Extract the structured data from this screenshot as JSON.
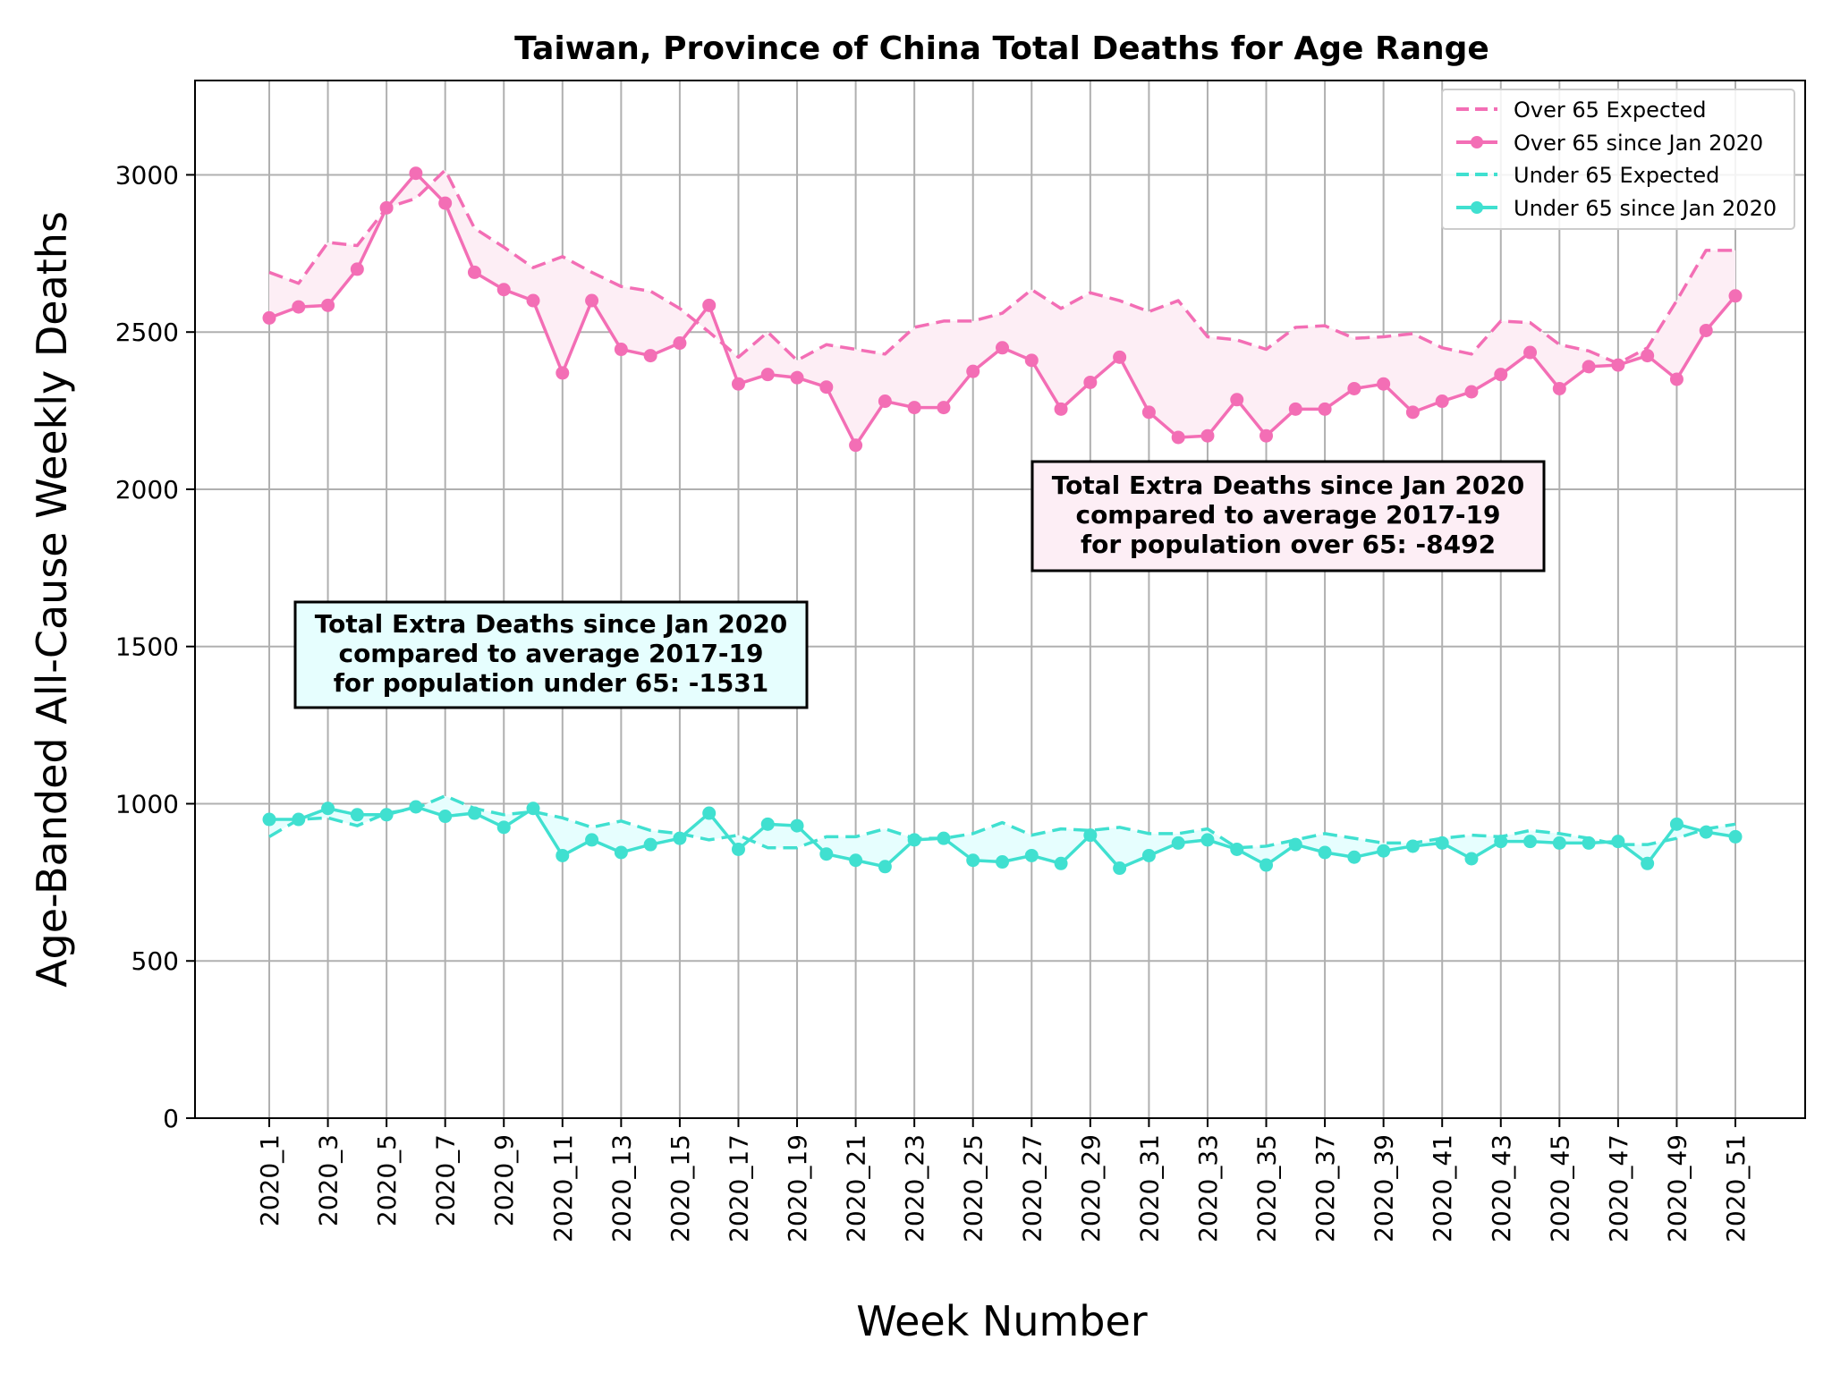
{
  "chart_data": {
    "type": "line",
    "title": "Taiwan, Province of China Total Deaths for Age Range",
    "xlabel": "Week Number",
    "ylabel": "Age-Banded All-Cause Weekly Deaths",
    "ylim": [
      0,
      3300
    ],
    "yticks": [
      0,
      500,
      1000,
      1500,
      2000,
      2500,
      3000
    ],
    "grid": true,
    "legend_position": "top-right",
    "x": [
      "2020_1",
      "2020_2",
      "2020_3",
      "2020_4",
      "2020_5",
      "2020_6",
      "2020_7",
      "2020_8",
      "2020_9",
      "2020_10",
      "2020_11",
      "2020_12",
      "2020_13",
      "2020_14",
      "2020_15",
      "2020_16",
      "2020_17",
      "2020_18",
      "2020_19",
      "2020_20",
      "2020_21",
      "2020_22",
      "2020_23",
      "2020_24",
      "2020_25",
      "2020_26",
      "2020_27",
      "2020_28",
      "2020_29",
      "2020_30",
      "2020_31",
      "2020_32",
      "2020_33",
      "2020_34",
      "2020_35",
      "2020_36",
      "2020_37",
      "2020_38",
      "2020_39",
      "2020_40",
      "2020_41",
      "2020_42",
      "2020_43",
      "2020_44",
      "2020_45",
      "2020_46",
      "2020_47",
      "2020_48",
      "2020_49",
      "2020_50",
      "2020_51"
    ],
    "xtick_labels": [
      "2020_1",
      "2020_3",
      "2020_5",
      "2020_7",
      "2020_9",
      "2020_11",
      "2020_13",
      "2020_15",
      "2020_17",
      "2020_19",
      "2020_21",
      "2020_23",
      "2020_25",
      "2020_27",
      "2020_29",
      "2020_31",
      "2020_33",
      "2020_35",
      "2020_37",
      "2020_39",
      "2020_41",
      "2020_43",
      "2020_45",
      "2020_47",
      "2020_49",
      "2020_51"
    ],
    "series": [
      {
        "name": "Over 65 Expected",
        "style": "dashed",
        "color": "#f36eb5",
        "values": [
          2690,
          2655,
          2785,
          2775,
          2895,
          2925,
          3015,
          2830,
          2770,
          2705,
          2740,
          2690,
          2645,
          2630,
          2575,
          2500,
          2420,
          2500,
          2410,
          2460,
          2445,
          2430,
          2515,
          2535,
          2535,
          2560,
          2635,
          2575,
          2625,
          2600,
          2565,
          2600,
          2485,
          2475,
          2445,
          2515,
          2520,
          2480,
          2485,
          2495,
          2450,
          2430,
          2535,
          2530,
          2460,
          2440,
          2400,
          2450,
          2600,
          2760,
          2760
        ]
      },
      {
        "name": "Over 65 since Jan 2020",
        "style": "solid-markers",
        "color": "#f36eb5",
        "values": [
          2545,
          2580,
          2585,
          2700,
          2895,
          3005,
          2910,
          2690,
          2635,
          2600,
          2370,
          2600,
          2445,
          2425,
          2465,
          2585,
          2335,
          2365,
          2355,
          2325,
          2140,
          2280,
          2260,
          2260,
          2375,
          2450,
          2410,
          2255,
          2340,
          2420,
          2245,
          2165,
          2170,
          2285,
          2170,
          2255,
          2255,
          2320,
          2335,
          2245,
          2280,
          2310,
          2365,
          2435,
          2320,
          2390,
          2395,
          2425,
          2350,
          2505,
          2615
        ]
      },
      {
        "name": "Under 65 Expected",
        "style": "dashed",
        "color": "#40e0d0",
        "values": [
          895,
          950,
          955,
          930,
          970,
          985,
          1025,
          985,
          965,
          975,
          955,
          925,
          945,
          915,
          905,
          885,
          900,
          860,
          860,
          895,
          895,
          920,
          890,
          890,
          905,
          940,
          900,
          920,
          915,
          925,
          905,
          905,
          920,
          860,
          865,
          885,
          905,
          890,
          875,
          875,
          890,
          900,
          895,
          915,
          905,
          890,
          870,
          870,
          890,
          920,
          935
        ]
      },
      {
        "name": "Under 65 since Jan 2020",
        "style": "solid-markers",
        "color": "#40e0d0",
        "values": [
          950,
          950,
          985,
          965,
          965,
          990,
          960,
          970,
          925,
          985,
          835,
          885,
          845,
          870,
          890,
          970,
          855,
          935,
          930,
          840,
          820,
          800,
          885,
          890,
          820,
          815,
          835,
          810,
          900,
          795,
          835,
          875,
          885,
          855,
          805,
          870,
          845,
          830,
          850,
          865,
          875,
          825,
          880,
          880,
          875,
          875,
          880,
          810,
          935,
          910,
          895
        ]
      }
    ],
    "annotations": [
      {
        "id": "over65",
        "lines": [
          "Total Extra Deaths since Jan 2020",
          "compared to average 2017-19",
          "for population over 65: -8492"
        ],
        "fill": "#fdeef5"
      },
      {
        "id": "under65",
        "lines": [
          "Total Extra Deaths since Jan 2020",
          "compared to average 2017-19",
          "for population under 65: -1531"
        ],
        "fill": "#e6fefe"
      }
    ]
  }
}
